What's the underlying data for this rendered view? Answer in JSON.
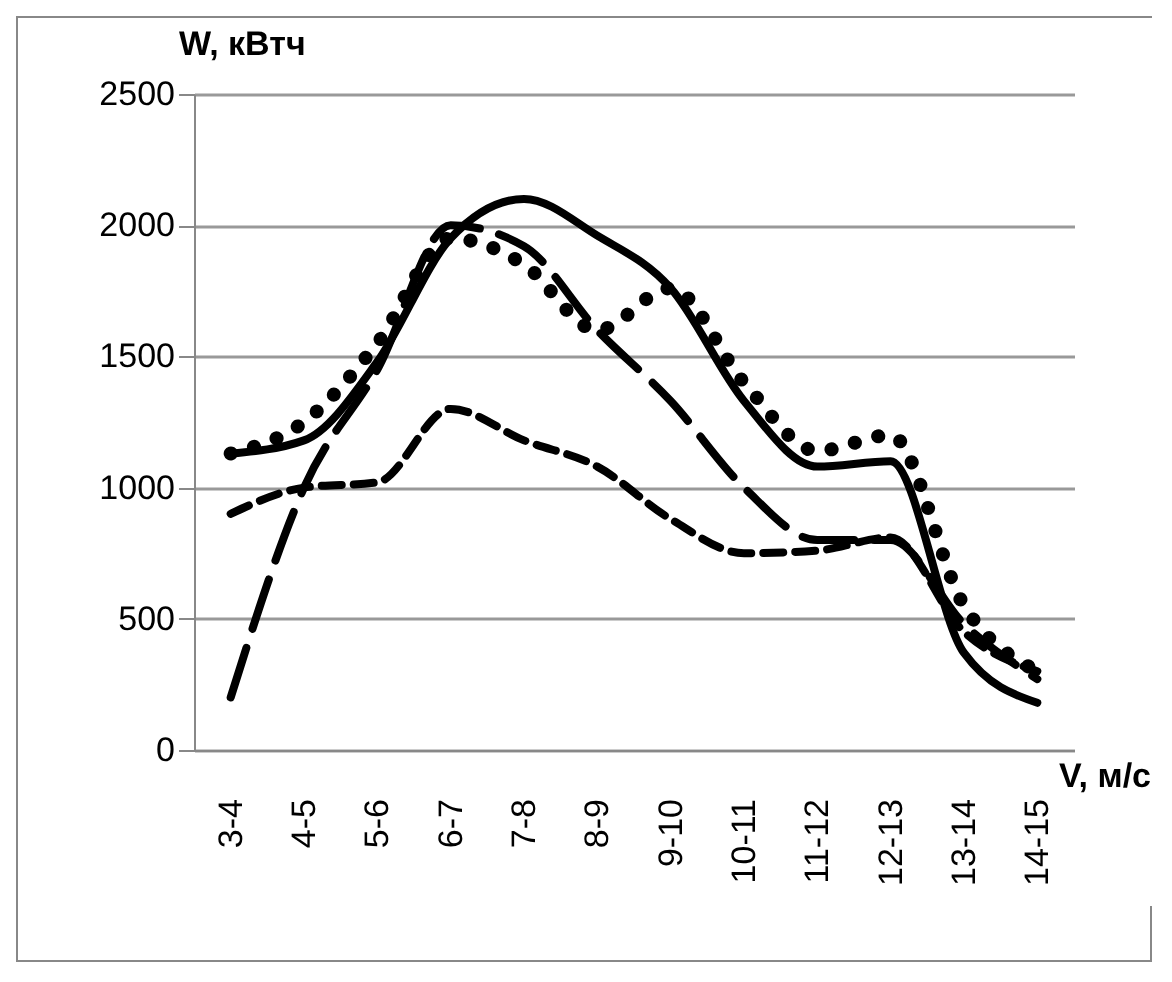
{
  "chart_data": {
    "type": "line",
    "xlabel": "V, м/с",
    "ylabel": "W, кВтч",
    "categories": [
      "3-4",
      "4-5",
      "5-6",
      "6-7",
      "7-8",
      "8-9",
      "9-10",
      "10-11",
      "11-12",
      "12-13",
      "13-14",
      "14-15"
    ],
    "series": [
      {
        "color": "#000000",
        "line_style": "dashed",
        "values": [
          900,
          1000,
          1020,
          1300,
          1180,
          1080,
          880,
          750,
          760,
          810,
          450,
          300
        ]
      },
      {
        "color": "#000000",
        "line_style": "solid",
        "values": [
          1130,
          1180,
          1480,
          1950,
          2100,
          1960,
          1760,
          1330,
          1080,
          1100,
          370,
          180
        ]
      },
      {
        "color": "#000000",
        "line_style": "longdash",
        "values": [
          200,
          1000,
          1450,
          2000,
          1920,
          1600,
          1330,
          1000,
          800,
          800,
          480,
          270
        ]
      },
      {
        "color": "#000000",
        "line_style": "dotted",
        "values": [
          1130,
          1250,
          1550,
          1950,
          1850,
          1600,
          1760,
          1400,
          1140,
          1200,
          550,
          300
        ]
      }
    ],
    "ylim": [
      0,
      2500
    ],
    "yticks": [
      0,
      500,
      1000,
      1500,
      2000,
      2500
    ],
    "grid": "y"
  }
}
